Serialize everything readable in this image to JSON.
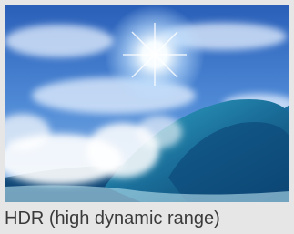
{
  "caption": "HDR (high dynamic range)"
}
